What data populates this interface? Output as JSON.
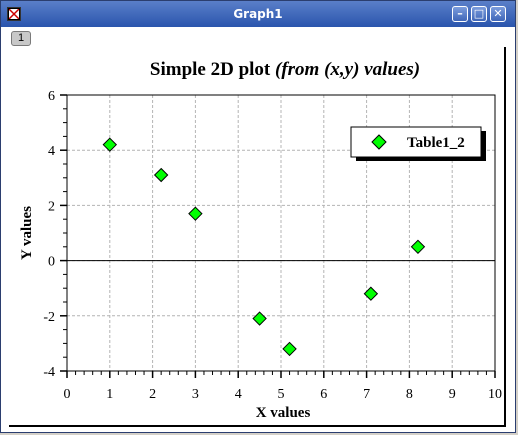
{
  "window": {
    "title": "Graph1",
    "layer_label": "1",
    "minimize_icon": "minimize-icon",
    "maximize_icon": "maximize-icon",
    "close_icon": "close-icon"
  },
  "colors": {
    "titlebar": "#2a55ad",
    "marker_fill": "#00ff00",
    "marker_stroke": "#000000",
    "grid": "#b4b4b4"
  },
  "chart_data": {
    "type": "scatter",
    "title_main": "Simple 2D plot ",
    "title_italic": "(from (x,y) values)",
    "xlabel": "X values",
    "ylabel": "Y values",
    "xlim": [
      0,
      10
    ],
    "ylim": [
      -4,
      6
    ],
    "xticks": [
      0,
      1,
      2,
      3,
      4,
      5,
      6,
      7,
      8,
      9,
      10
    ],
    "yticks": [
      -4,
      -2,
      0,
      2,
      4,
      6
    ],
    "grid": true,
    "legend_position": "top-right",
    "series": [
      {
        "name": "Table1_2",
        "marker": "diamond",
        "x": [
          1,
          2.2,
          3,
          4.5,
          5.2,
          7.1,
          8.2
        ],
        "y": [
          4.2,
          3.1,
          1.7,
          -2.1,
          -3.2,
          -1.2,
          0.5
        ]
      }
    ]
  }
}
